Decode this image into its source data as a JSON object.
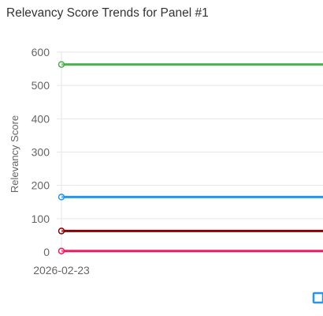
{
  "chart_data": {
    "type": "line",
    "title": "Relevancy Score Trends for Panel #1",
    "xlabel": "",
    "ylabel": "Relevancy Score",
    "ylim": [
      0,
      600
    ],
    "yticks": [
      0,
      100,
      200,
      300,
      400,
      500,
      600
    ],
    "x": [
      "2026-02-23"
    ],
    "grid": true,
    "legend": "bottom",
    "series": [
      {
        "color": "#4caf50",
        "values": [
          563
        ]
      },
      {
        "color": "#2196f3",
        "values": [
          165
        ]
      },
      {
        "color": "#8b0000",
        "values": [
          63
        ]
      },
      {
        "color": "#e91e63",
        "values": [
          3
        ]
      }
    ],
    "legend_color": "#2196f3"
  }
}
